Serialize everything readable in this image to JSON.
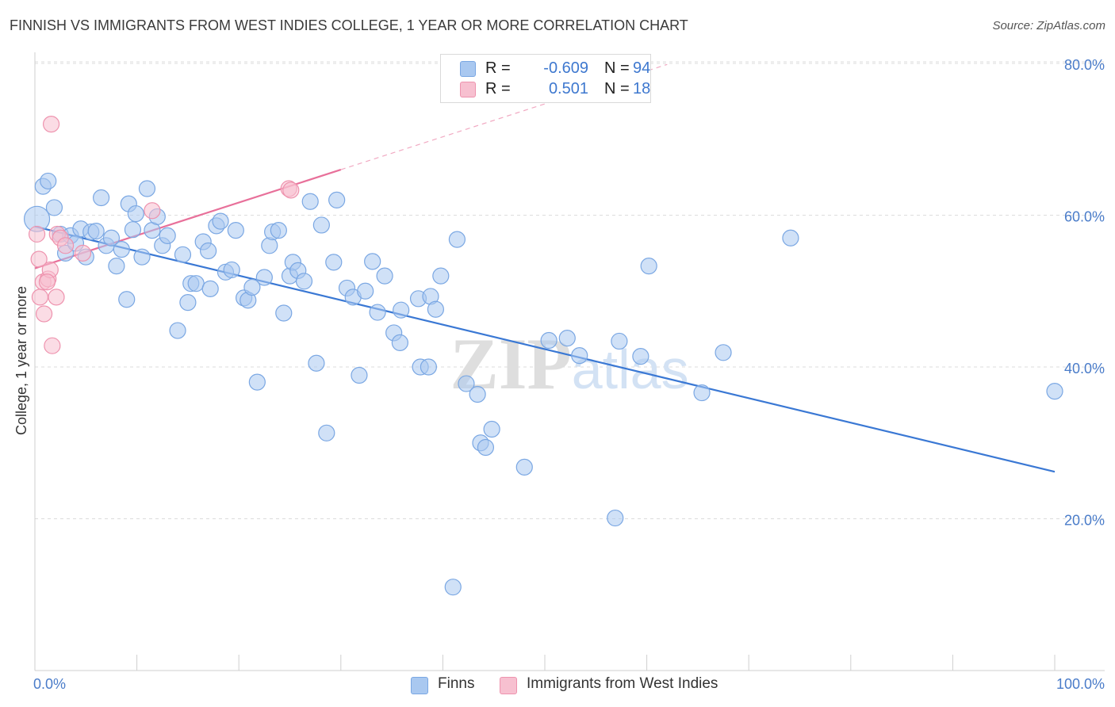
{
  "header": {
    "title": "FINNISH VS IMMIGRANTS FROM WEST INDIES COLLEGE, 1 YEAR OR MORE CORRELATION CHART",
    "source": "Source: ZipAtlas.com"
  },
  "watermark": "ZIPatlas",
  "legend": {
    "rows": [
      {
        "r_label": "R =",
        "r_value": "-0.609",
        "n_label": "N =",
        "n_value": "94",
        "color": "#a9c8f0",
        "border": "#7aa7e3"
      },
      {
        "r_label": "R =",
        "r_value": "0.501",
        "n_label": "N =",
        "n_value": "18",
        "color": "#f7c0d0",
        "border": "#ee93ae"
      }
    ]
  },
  "bottom_legend": {
    "finns": "Finns",
    "west_indies": "Immigrants from West Indies"
  },
  "chart_data": {
    "type": "scatter",
    "title": "FINNISH VS IMMIGRANTS FROM WEST INDIES COLLEGE, 1 YEAR OR MORE CORRELATION CHART",
    "xlabel": "",
    "ylabel": "College, 1 year or more",
    "xlim": [
      0,
      100
    ],
    "ylim": [
      0,
      82
    ],
    "x_ticks": [
      0,
      10,
      20,
      30,
      40,
      50,
      60,
      70,
      80,
      90,
      100
    ],
    "x_tick_labels": {
      "0": "0.0%",
      "100": "100.0%"
    },
    "y_ticks": [
      20,
      40,
      60,
      80
    ],
    "y_tick_labels": [
      "20.0%",
      "40.0%",
      "60.0%",
      "80.0%"
    ],
    "grid": true,
    "legend_position": "top-center",
    "series": [
      {
        "name": "Finns",
        "color": "#a9c8f0",
        "stroke": "#7aa7e3",
        "trend": {
          "x0": 0,
          "y0": 58.5,
          "x1": 100,
          "y1": 26.2,
          "color": "#3a78d4",
          "dashed_extension": false
        },
        "points": [
          [
            0.2,
            59.5
          ],
          [
            0.8,
            63.8
          ],
          [
            1.3,
            64.5
          ],
          [
            1.9,
            61.0
          ],
          [
            2.5,
            57.5
          ],
          [
            3.0,
            55.0
          ],
          [
            3.5,
            57.3
          ],
          [
            4.0,
            56.3
          ],
          [
            4.5,
            58.2
          ],
          [
            5.0,
            54.5
          ],
          [
            5.5,
            57.8
          ],
          [
            6.0,
            57.9
          ],
          [
            6.5,
            62.3
          ],
          [
            7.0,
            56.0
          ],
          [
            7.5,
            57.0
          ],
          [
            8.0,
            53.3
          ],
          [
            8.5,
            55.5
          ],
          [
            9.0,
            48.9
          ],
          [
            9.2,
            61.5
          ],
          [
            9.6,
            58.1
          ],
          [
            9.9,
            60.2
          ],
          [
            10.5,
            54.5
          ],
          [
            11.0,
            63.5
          ],
          [
            11.5,
            58.0
          ],
          [
            12.0,
            59.8
          ],
          [
            12.5,
            56.0
          ],
          [
            13.0,
            57.3
          ],
          [
            14.0,
            44.8
          ],
          [
            14.5,
            54.8
          ],
          [
            15.0,
            48.5
          ],
          [
            15.3,
            51.0
          ],
          [
            15.8,
            51.0
          ],
          [
            16.5,
            56.5
          ],
          [
            17.0,
            55.3
          ],
          [
            17.2,
            50.3
          ],
          [
            17.8,
            58.6
          ],
          [
            18.2,
            59.2
          ],
          [
            18.7,
            52.5
          ],
          [
            19.3,
            52.8
          ],
          [
            19.7,
            58.0
          ],
          [
            20.5,
            49.1
          ],
          [
            20.9,
            48.8
          ],
          [
            21.3,
            50.5
          ],
          [
            21.8,
            38.0
          ],
          [
            22.5,
            51.8
          ],
          [
            23.0,
            56.0
          ],
          [
            23.3,
            57.8
          ],
          [
            23.9,
            58.0
          ],
          [
            24.4,
            47.1
          ],
          [
            25.0,
            52.0
          ],
          [
            25.3,
            53.8
          ],
          [
            25.8,
            52.7
          ],
          [
            26.4,
            51.3
          ],
          [
            27.0,
            61.8
          ],
          [
            27.6,
            40.5
          ],
          [
            28.1,
            58.7
          ],
          [
            28.6,
            31.3
          ],
          [
            29.3,
            53.8
          ],
          [
            29.6,
            62.0
          ],
          [
            30.6,
            50.4
          ],
          [
            31.2,
            49.2
          ],
          [
            31.8,
            38.9
          ],
          [
            32.4,
            50.0
          ],
          [
            33.1,
            53.9
          ],
          [
            33.6,
            47.2
          ],
          [
            34.3,
            52.0
          ],
          [
            35.2,
            44.5
          ],
          [
            35.8,
            43.2
          ],
          [
            35.9,
            47.5
          ],
          [
            37.6,
            49.0
          ],
          [
            37.8,
            40.0
          ],
          [
            38.6,
            40.0
          ],
          [
            38.8,
            49.3
          ],
          [
            39.3,
            47.6
          ],
          [
            39.8,
            52.0
          ],
          [
            41.0,
            11.0
          ],
          [
            41.4,
            56.8
          ],
          [
            42.3,
            37.8
          ],
          [
            43.4,
            36.4
          ],
          [
            43.7,
            30.0
          ],
          [
            44.2,
            29.4
          ],
          [
            44.8,
            31.8
          ],
          [
            48.0,
            26.8
          ],
          [
            50.4,
            43.5
          ],
          [
            52.2,
            43.8
          ],
          [
            53.4,
            41.5
          ],
          [
            56.9,
            20.1
          ],
          [
            57.3,
            43.4
          ],
          [
            59.4,
            41.4
          ],
          [
            60.2,
            53.3
          ],
          [
            65.4,
            36.6
          ],
          [
            67.5,
            41.9
          ],
          [
            74.1,
            57.0
          ],
          [
            100.0,
            36.8
          ]
        ]
      },
      {
        "name": "Immigrants from West Indies",
        "color": "#f7c0d0",
        "stroke": "#ee93ae",
        "trend": {
          "x0": 0,
          "y0": 53.0,
          "x1": 30,
          "y1": 66.0,
          "color": "#e8709a",
          "dashed_extension_to_x": 62
        },
        "points": [
          [
            0.2,
            57.5
          ],
          [
            0.4,
            54.2
          ],
          [
            0.5,
            49.2
          ],
          [
            0.8,
            51.2
          ],
          [
            0.9,
            47.0
          ],
          [
            1.3,
            51.6
          ],
          [
            1.5,
            52.8
          ],
          [
            1.6,
            72.0
          ],
          [
            1.7,
            42.8
          ],
          [
            2.1,
            49.2
          ],
          [
            2.2,
            57.5
          ],
          [
            2.5,
            57.0
          ],
          [
            3.0,
            56.0
          ],
          [
            4.7,
            55.0
          ],
          [
            11.5,
            60.6
          ],
          [
            24.9,
            63.5
          ],
          [
            25.1,
            63.3
          ],
          [
            1.2,
            51.2
          ]
        ]
      }
    ]
  }
}
